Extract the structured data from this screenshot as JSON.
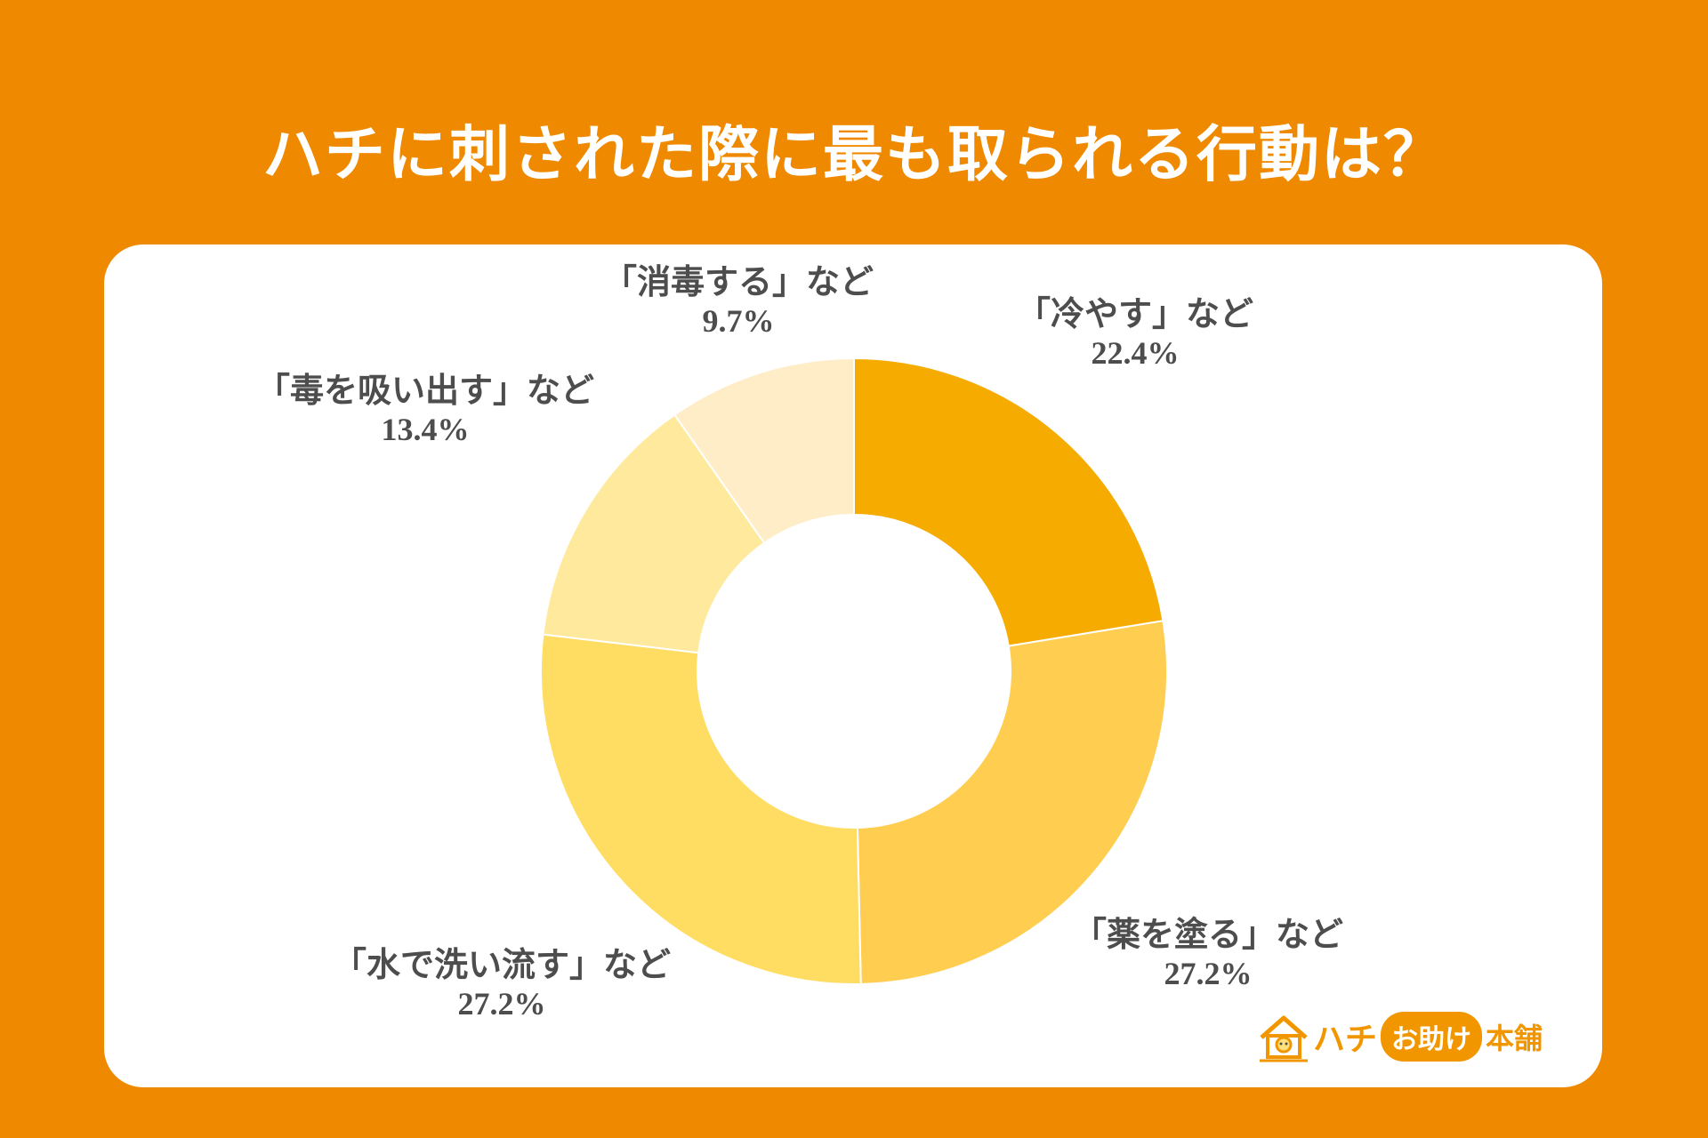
{
  "title": "ハチに刺された際に最も取られる行動は？",
  "chart_data": {
    "type": "pie",
    "donut": true,
    "slices": [
      {
        "name": "「冷やす」など",
        "value": 22.4,
        "label": "22.4%",
        "color": "#f5ab00"
      },
      {
        "name": "「薬を塗る」など",
        "value": 27.2,
        "label": "27.2%",
        "color": "#ffcd50"
      },
      {
        "name": "「水で洗い流す」など",
        "value": 27.2,
        "label": "27.2%",
        "color": "#ffdc62"
      },
      {
        "name": "「毒を吸い出す」など",
        "value": 13.4,
        "label": "13.4%",
        "color": "#ffe99d"
      },
      {
        "name": "「消毒する」など",
        "value": 9.7,
        "label": "9.7%",
        "color": "#ffedc8"
      }
    ]
  },
  "logo": {
    "part1": "ハチ",
    "part2": "お助け",
    "part3": "本舗",
    "color": "#f29600"
  }
}
